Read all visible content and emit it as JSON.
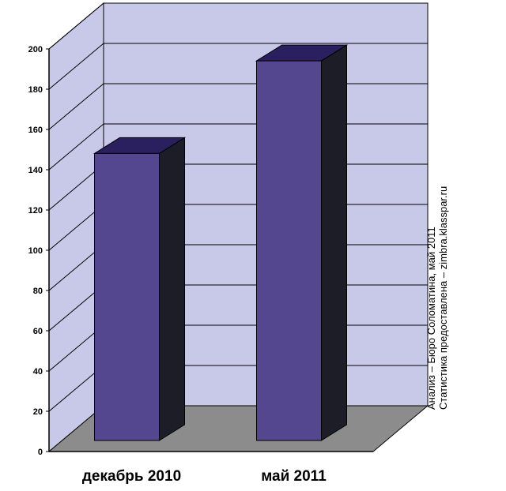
{
  "chart_data": {
    "type": "bar",
    "categories": [
      "декабрь 2010",
      "май 2011"
    ],
    "values": [
      152,
      198
    ],
    "ylim": [
      0,
      200
    ],
    "yticks": [
      0,
      20,
      40,
      60,
      80,
      100,
      120,
      140,
      160,
      180,
      200
    ],
    "grid": true,
    "three_d": true,
    "colors": {
      "bar_front": "#55478f",
      "bar_top": "#2a2060",
      "bar_side": "#1d1d28",
      "back_wall": "#c8c8e8",
      "floor": "#8c8c8c"
    }
  },
  "annotation": {
    "line1": "Анализ – Бюро Соломатина, май 2011",
    "line2": "Статистика предоставлена  – zimbra.klasspar.ru"
  }
}
